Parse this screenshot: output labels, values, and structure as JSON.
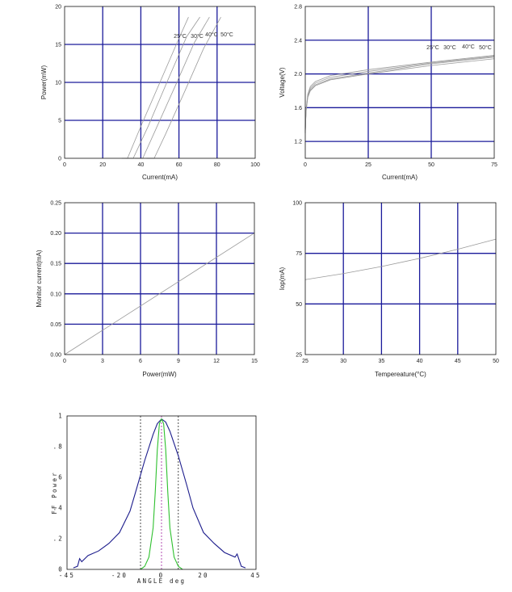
{
  "chart_data": [
    {
      "id": "power_current",
      "type": "line",
      "xlabel": "Current(mA)",
      "ylabel": "Power(mW)",
      "xlim": [
        0,
        100
      ],
      "ylim": [
        0,
        20
      ],
      "xticks": [
        0,
        20,
        40,
        60,
        80,
        100
      ],
      "yticks": [
        0,
        5,
        10,
        15,
        20
      ],
      "grid": true,
      "series": [
        {
          "name": "25°C",
          "points": [
            [
              30,
              0
            ],
            [
              33,
              0
            ],
            [
              40,
              4.2
            ],
            [
              50,
              10
            ],
            [
              60,
              15.8
            ],
            [
              65,
              18.6
            ]
          ]
        },
        {
          "name": "30°C",
          "points": [
            [
              32,
              0
            ],
            [
              36,
              0
            ],
            [
              44,
              4.3
            ],
            [
              54,
              10.2
            ],
            [
              64,
              16
            ],
            [
              71,
              18.6
            ]
          ]
        },
        {
          "name": "40°C",
          "points": [
            [
              37,
              0
            ],
            [
              41,
              0
            ],
            [
              48,
              3.9
            ],
            [
              58,
              9.5
            ],
            [
              68,
              15.2
            ],
            [
              76,
              18.6
            ]
          ]
        },
        {
          "name": "50°C",
          "points": [
            [
              43,
              0
            ],
            [
              47,
              0
            ],
            [
              53,
              3.2
            ],
            [
              63,
              8.8
            ],
            [
              73,
              14.5
            ],
            [
              82,
              18.6
            ]
          ]
        }
      ],
      "annotations": [
        "25°C",
        "30°C",
        "40°C",
        "50°C"
      ]
    },
    {
      "id": "voltage_current",
      "type": "line",
      "xlabel": "Current(mA)",
      "ylabel": "Voltage(V)",
      "xlim": [
        0,
        75
      ],
      "ylim": [
        1.0,
        2.8
      ],
      "xticks": [
        0,
        25,
        50,
        75
      ],
      "yticks": [
        1.2,
        1.6,
        2.0,
        2.4,
        2.8
      ],
      "ytick_labels": [
        "1.2",
        "1.6",
        "2.0",
        "2.4",
        "2.8"
      ],
      "grid": true,
      "series": [
        {
          "name": "25°C",
          "points": [
            [
              0,
              1.3
            ],
            [
              0.3,
              1.55
            ],
            [
              1,
              1.72
            ],
            [
              2,
              1.8
            ],
            [
              4,
              1.86
            ],
            [
              10,
              1.93
            ],
            [
              25,
              2.0
            ],
            [
              50,
              2.1
            ],
            [
              75,
              2.18
            ]
          ]
        },
        {
          "name": "30°C",
          "points": [
            [
              0,
              1.3
            ],
            [
              0.3,
              1.56
            ],
            [
              1,
              1.73
            ],
            [
              2,
              1.81
            ],
            [
              4,
              1.87
            ],
            [
              10,
              1.94
            ],
            [
              25,
              2.01
            ],
            [
              50,
              2.12
            ],
            [
              75,
              2.2
            ]
          ]
        },
        {
          "name": "40°C",
          "points": [
            [
              0,
              1.3
            ],
            [
              0.3,
              1.57
            ],
            [
              1,
              1.74
            ],
            [
              2,
              1.83
            ],
            [
              4,
              1.89
            ],
            [
              10,
              1.96
            ],
            [
              25,
              2.03
            ],
            [
              50,
              2.13
            ],
            [
              75,
              2.21
            ]
          ]
        },
        {
          "name": "50°C",
          "points": [
            [
              0,
              1.3
            ],
            [
              0.3,
              1.58
            ],
            [
              1,
              1.76
            ],
            [
              2,
              1.85
            ],
            [
              4,
              1.91
            ],
            [
              10,
              1.98
            ],
            [
              25,
              2.05
            ],
            [
              50,
              2.14
            ],
            [
              75,
              2.22
            ]
          ]
        }
      ],
      "annotations": [
        "25°C",
        "30°C",
        "40°C",
        "50°C"
      ]
    },
    {
      "id": "monitor_power",
      "type": "line",
      "xlabel": "Power(mW)",
      "ylabel": "Monitor current(mA)",
      "xlim": [
        0,
        15
      ],
      "ylim": [
        0,
        0.25
      ],
      "xticks": [
        0,
        3,
        6,
        9,
        12,
        15
      ],
      "yticks": [
        0,
        0.05,
        0.1,
        0.15,
        0.2,
        0.25
      ],
      "ytick_labels": [
        "0.00",
        "0.05",
        "0.10",
        "0.15",
        "0.20",
        "0.25"
      ],
      "grid": true,
      "series": [
        {
          "points": [
            [
              0,
              0
            ],
            [
              15,
              0.2
            ]
          ]
        }
      ]
    },
    {
      "id": "iop_temperature",
      "type": "line",
      "xlabel": "Tempereature(°C)",
      "ylabel": "Iop(mA)",
      "xlim": [
        25,
        50
      ],
      "ylim": [
        25,
        100
      ],
      "xticks": [
        25,
        30,
        35,
        40,
        45,
        50
      ],
      "yticks": [
        25,
        50,
        75,
        100
      ],
      "grid": true,
      "series": [
        {
          "points": [
            [
              25,
              62
            ],
            [
              30,
              65
            ],
            [
              35,
              68.5
            ],
            [
              40,
              72.5
            ],
            [
              45,
              77
            ],
            [
              50,
              82
            ]
          ]
        }
      ]
    },
    {
      "id": "far_field",
      "type": "line",
      "xlabel": "ANGLE deg",
      "ylabel": "FF Power",
      "xlim": [
        -45,
        45
      ],
      "ylim": [
        0,
        1
      ],
      "xticks": [
        -45,
        -20,
        0,
        20,
        45
      ],
      "yticks": [
        0,
        0.2,
        0.4,
        0.6,
        0.8,
        1
      ],
      "ytick_labels": [
        "0",
        ".2",
        ".4",
        ".6",
        ".8",
        "1"
      ],
      "grid": false,
      "vlines": [
        -10,
        0,
        8
      ],
      "series": [
        {
          "color": "#1c1c8c",
          "points": [
            [
              -42,
              0.01
            ],
            [
              -40,
              0.02
            ],
            [
              -39,
              0.07
            ],
            [
              -38,
              0.05
            ],
            [
              -35,
              0.09
            ],
            [
              -30,
              0.12
            ],
            [
              -25,
              0.17
            ],
            [
              -20,
              0.24
            ],
            [
              -15,
              0.38
            ],
            [
              -12,
              0.52
            ],
            [
              -8,
              0.71
            ],
            [
              -4,
              0.88
            ],
            [
              -2,
              0.95
            ],
            [
              0,
              0.98
            ],
            [
              2,
              0.96
            ],
            [
              4,
              0.9
            ],
            [
              8,
              0.74
            ],
            [
              12,
              0.55
            ],
            [
              15,
              0.4
            ],
            [
              20,
              0.24
            ],
            [
              25,
              0.17
            ],
            [
              30,
              0.11
            ],
            [
              35,
              0.08
            ],
            [
              36,
              0.1
            ],
            [
              37,
              0.06
            ],
            [
              38,
              0.02
            ],
            [
              40,
              0.01
            ]
          ]
        },
        {
          "color": "#2ec02e",
          "points": [
            [
              -10,
              0
            ],
            [
              -8,
              0.02
            ],
            [
              -6,
              0.08
            ],
            [
              -4,
              0.27
            ],
            [
              -3,
              0.5
            ],
            [
              -2,
              0.78
            ],
            [
              -1,
              0.95
            ],
            [
              0,
              0.98
            ],
            [
              1,
              0.95
            ],
            [
              2,
              0.78
            ],
            [
              3,
              0.5
            ],
            [
              4,
              0.27
            ],
            [
              6,
              0.08
            ],
            [
              8,
              0.02
            ],
            [
              10,
              0
            ]
          ]
        }
      ]
    }
  ]
}
